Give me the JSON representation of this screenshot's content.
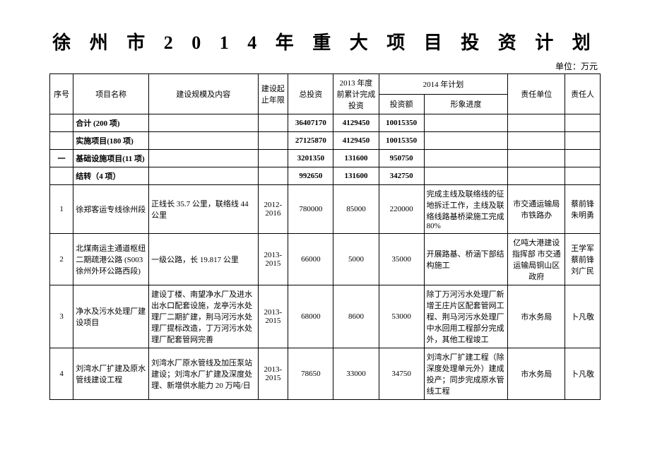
{
  "title": "徐 州 市 2 0 1 4 年 重 大 项 目 投 资 计 划",
  "unit": "单位：万元",
  "headers": {
    "seq": "序号",
    "name": "项目名称",
    "scale": "建设规模及内容",
    "period": "建设起止年限",
    "total": "总投资",
    "y2013": "2013 年度前累计完成投资",
    "plan2014": "2014 年计划",
    "invest": "投资额",
    "progress": "形象进度",
    "respUnit": "责任单位",
    "respPerson": "责任人"
  },
  "summary": [
    {
      "seq": "",
      "name": "合计 (200 项)",
      "total": "36407170",
      "y2013": "4129450",
      "invest": "10015350"
    },
    {
      "seq": "",
      "name": "实施项目(180 项)",
      "total": "27125870",
      "y2013": "4129450",
      "invest": "10015350"
    },
    {
      "seq": "一",
      "name": "基础设施项目(11 项)",
      "total": "3201350",
      "y2013": "131600",
      "invest": "950750"
    },
    {
      "seq": "",
      "name": "结转（4 项）",
      "total": "992650",
      "y2013": "131600",
      "invest": "342750"
    }
  ],
  "rows": [
    {
      "seq": "1",
      "name": "徐郑客运专线徐州段",
      "scale": "正线长 35.7 公里，联络线 44公里",
      "period": "2012-2016",
      "total": "780000",
      "y2013": "85000",
      "invest": "220000",
      "progress": "完成主线及联络线的征地拆迁工作，主线及联络线路基桥梁施工完成 80%",
      "respUnit": "市交通运输局市铁路办",
      "respPerson": "蔡前锋朱明勇"
    },
    {
      "seq": "2",
      "name": "北煤南运主通道枢纽二期疏港公路 (S003 徐州外环公路西段)",
      "scale": "一级公路，长 19.817 公里",
      "period": "2013-2015",
      "total": "66000",
      "y2013": "5000",
      "invest": "35000",
      "progress": "开展路基、桥涵下部结构施工",
      "respUnit": "亿吨大港建设指挥部 市交通运输局铜山区政府",
      "respPerson": "王学军蔡前锋刘广民"
    },
    {
      "seq": "3",
      "name": "净水及污水处理厂建设项目",
      "scale": "建设丁楼、南望净水厂及进水出水口配套设施，龙亭污水处理厂二期扩建，荆马河污水处理厂提标改造，丁万河污水处理厂配套管网完善",
      "period": "2013-2015",
      "total": "68000",
      "y2013": "8600",
      "invest": "53000",
      "progress": "除丁万河污水处理厂新增王庄片区配套管网工程、荆马河污水处理厂中水回用工程部分完成外，其他工程竣工",
      "respUnit": "市水务局",
      "respPerson": "卜凡敬"
    },
    {
      "seq": "4",
      "name": "刘湾水厂扩建及原水管线建设工程",
      "scale": "刘湾水厂原水管线及加压泵站建设；刘湾水厂扩建及深度处理、新增供水能力 20 万吨/日",
      "period": "2013-2015",
      "total": "78650",
      "y2013": "33000",
      "invest": "34750",
      "progress": "刘湾水厂扩建工程（除深度处理单元外）建成投产；同步完成原水管线工程",
      "respUnit": "市水务局",
      "respPerson": "卜凡敬"
    }
  ]
}
